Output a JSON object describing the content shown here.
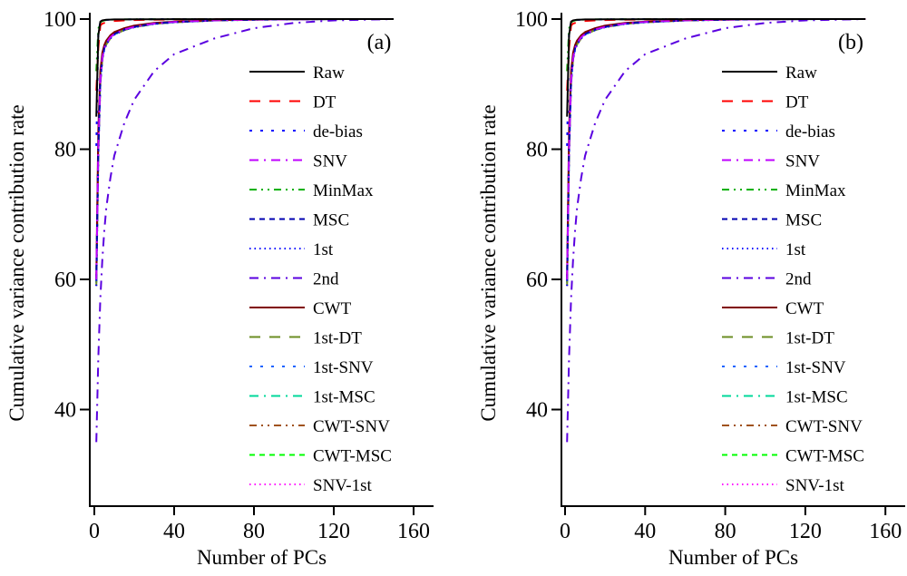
{
  "figure": {
    "series_styles": [
      {
        "name": "Raw",
        "color": "#000000",
        "dash": "solid"
      },
      {
        "name": "DT",
        "color": "#ff0000",
        "dash": "dash"
      },
      {
        "name": "de-bias",
        "color": "#0000ff",
        "dash": "dot-sparse"
      },
      {
        "name": "SNV",
        "color": "#bf00ff",
        "dash": "dash-dot"
      },
      {
        "name": "MinMax",
        "color": "#00b000",
        "dash": "dash-dot-dot"
      },
      {
        "name": "MSC",
        "color": "#0000b0",
        "dash": "short-dash"
      },
      {
        "name": "1st",
        "color": "#0000ff",
        "dash": "dot"
      },
      {
        "name": "2nd",
        "color": "#5a00e0",
        "dash": "dash-dot"
      },
      {
        "name": "CWT",
        "color": "#800000",
        "dash": "solid"
      },
      {
        "name": "1st-DT",
        "color": "#6b8e23",
        "dash": "dash"
      },
      {
        "name": "1st-SNV",
        "color": "#1e64ff",
        "dash": "dot-sparse"
      },
      {
        "name": "1st-MSC",
        "color": "#00d89a",
        "dash": "dash-dot"
      },
      {
        "name": "CWT-SNV",
        "color": "#a0521e",
        "dash": "dash-dot-dot"
      },
      {
        "name": "CWT-MSC",
        "color": "#00ff00",
        "dash": "short-dash"
      },
      {
        "name": "SNV-1st",
        "color": "#ff00ff",
        "dash": "dot"
      }
    ]
  },
  "chart_data": [
    {
      "type": "line",
      "panel_label": "(a)",
      "title": "",
      "xlabel": "Number of PCs",
      "ylabel": "Cumulative variance contribution rate",
      "xlim": [
        0,
        170
      ],
      "ylim": [
        25,
        103
      ],
      "xticks": [
        0,
        40,
        80,
        120,
        160
      ],
      "yticks": [
        40,
        60,
        80,
        100
      ],
      "grid": false,
      "legend_position": "right",
      "x": [
        1,
        2,
        3,
        4,
        5,
        6,
        8,
        10,
        15,
        20,
        30,
        40,
        60,
        80,
        100,
        120,
        150
      ],
      "series": [
        {
          "name": "Raw",
          "values": [
            85.0,
            97.5,
            99.6,
            99.8,
            99.85,
            99.9,
            99.92,
            99.94,
            99.95,
            99.96,
            99.97,
            99.98,
            99.99,
            100,
            100,
            100,
            100
          ]
        },
        {
          "name": "DT",
          "values": [
            89.0,
            95.5,
            99.0,
            99.3,
            99.4,
            99.5,
            99.6,
            99.7,
            99.8,
            99.85,
            99.9,
            99.94,
            99.97,
            99.99,
            100,
            100,
            100
          ]
        },
        {
          "name": "de-bias",
          "values": [
            80.5,
            98.0,
            99.5,
            99.7,
            99.8,
            99.85,
            99.9,
            99.92,
            99.94,
            99.96,
            99.97,
            99.98,
            99.99,
            100,
            100,
            100,
            100
          ]
        },
        {
          "name": "SNV",
          "values": [
            60.0,
            80.0,
            90.5,
            94.0,
            95.5,
            96.3,
            97.2,
            97.7,
            98.4,
            98.8,
            99.3,
            99.55,
            99.8,
            99.92,
            99.97,
            100,
            100
          ]
        },
        {
          "name": "MinMax",
          "values": [
            92.0,
            98.5,
            99.5,
            99.7,
            99.8,
            99.85,
            99.9,
            99.92,
            99.94,
            99.96,
            99.97,
            99.98,
            99.99,
            100,
            100,
            100,
            100
          ]
        },
        {
          "name": "MSC",
          "values": [
            60.0,
            80.0,
            90.5,
            94.0,
            95.5,
            96.3,
            97.2,
            97.7,
            98.4,
            98.8,
            99.3,
            99.55,
            99.8,
            99.92,
            99.97,
            100,
            100
          ]
        },
        {
          "name": "1st",
          "values": [
            59.0,
            79.0,
            90.0,
            93.8,
            95.3,
            96.1,
            97.0,
            97.6,
            98.3,
            98.75,
            99.25,
            99.5,
            99.78,
            99.9,
            99.96,
            99.99,
            100
          ]
        },
        {
          "name": "2nd",
          "values": [
            35.0,
            48.0,
            57.0,
            63.0,
            67.5,
            71.0,
            75.5,
            79.0,
            84.0,
            87.6,
            92.0,
            94.6,
            97.0,
            98.6,
            99.4,
            99.8,
            100
          ]
        },
        {
          "name": "CWT",
          "values": [
            60.5,
            83.0,
            92.0,
            94.8,
            96.0,
            96.7,
            97.5,
            98.0,
            98.6,
            99.0,
            99.4,
            99.6,
            99.82,
            99.92,
            99.97,
            100,
            100
          ]
        },
        {
          "name": "1st-DT",
          "values": [
            59.0,
            79.0,
            90.0,
            93.8,
            95.3,
            96.1,
            97.0,
            97.6,
            98.3,
            98.75,
            99.25,
            99.5,
            99.78,
            99.9,
            99.96,
            99.99,
            100
          ]
        },
        {
          "name": "1st-SNV",
          "values": [
            59.5,
            79.5,
            90.2,
            93.9,
            95.4,
            96.2,
            97.1,
            97.6,
            98.3,
            98.75,
            99.25,
            99.5,
            99.78,
            99.9,
            99.96,
            99.99,
            100
          ]
        },
        {
          "name": "1st-MSC",
          "values": [
            59.5,
            79.5,
            90.2,
            93.9,
            95.4,
            96.2,
            97.1,
            97.6,
            98.3,
            98.75,
            99.25,
            99.5,
            99.78,
            99.9,
            99.96,
            99.99,
            100
          ]
        },
        {
          "name": "CWT-SNV",
          "values": [
            60.0,
            81.0,
            91.0,
            94.3,
            95.7,
            96.4,
            97.3,
            97.8,
            98.5,
            98.9,
            99.35,
            99.58,
            99.8,
            99.92,
            99.97,
            100,
            100
          ]
        },
        {
          "name": "CWT-MSC",
          "values": [
            60.0,
            81.0,
            91.0,
            94.3,
            95.7,
            96.4,
            97.3,
            97.8,
            98.5,
            98.9,
            99.35,
            99.58,
            99.8,
            99.92,
            99.97,
            100,
            100
          ]
        },
        {
          "name": "SNV-1st",
          "values": [
            59.0,
            79.0,
            90.0,
            93.8,
            95.3,
            96.1,
            97.0,
            97.6,
            98.3,
            98.75,
            99.25,
            99.5,
            99.78,
            99.9,
            99.96,
            99.99,
            100
          ]
        }
      ]
    },
    {
      "type": "line",
      "panel_label": "(b)",
      "title": "",
      "xlabel": "Number of PCs",
      "ylabel": "Cumulative variance contribution rate",
      "xlim": [
        0,
        170
      ],
      "ylim": [
        25,
        103
      ],
      "xticks": [
        0,
        40,
        80,
        120,
        160
      ],
      "yticks": [
        40,
        60,
        80,
        100
      ],
      "grid": false,
      "legend_position": "right",
      "x": [
        1,
        2,
        3,
        4,
        5,
        6,
        8,
        10,
        15,
        20,
        30,
        40,
        60,
        80,
        100,
        120,
        150
      ],
      "series": [
        {
          "name": "Raw",
          "values": [
            85.0,
            97.5,
            99.6,
            99.8,
            99.85,
            99.9,
            99.92,
            99.94,
            99.95,
            99.96,
            99.97,
            99.98,
            99.99,
            100,
            100,
            100,
            100
          ]
        },
        {
          "name": "DT",
          "values": [
            89.0,
            95.5,
            99.0,
            99.3,
            99.4,
            99.5,
            99.6,
            99.7,
            99.8,
            99.85,
            99.9,
            99.94,
            99.97,
            99.99,
            100,
            100,
            100
          ]
        },
        {
          "name": "de-bias",
          "values": [
            80.5,
            98.0,
            99.5,
            99.7,
            99.8,
            99.85,
            99.9,
            99.92,
            99.94,
            99.96,
            99.97,
            99.98,
            99.99,
            100,
            100,
            100,
            100
          ]
        },
        {
          "name": "SNV",
          "values": [
            60.0,
            80.0,
            90.5,
            94.0,
            95.5,
            96.3,
            97.2,
            97.7,
            98.4,
            98.8,
            99.3,
            99.55,
            99.8,
            99.92,
            99.97,
            100,
            100
          ]
        },
        {
          "name": "MinMax",
          "values": [
            92.0,
            98.5,
            99.5,
            99.7,
            99.8,
            99.85,
            99.9,
            99.92,
            99.94,
            99.96,
            99.97,
            99.98,
            99.99,
            100,
            100,
            100,
            100
          ]
        },
        {
          "name": "MSC",
          "values": [
            60.0,
            80.0,
            90.5,
            94.0,
            95.5,
            96.3,
            97.2,
            97.7,
            98.4,
            98.8,
            99.3,
            99.55,
            99.8,
            99.92,
            99.97,
            100,
            100
          ]
        },
        {
          "name": "1st",
          "values": [
            59.0,
            79.0,
            90.0,
            93.8,
            95.3,
            96.1,
            97.0,
            97.6,
            98.3,
            98.75,
            99.25,
            99.5,
            99.78,
            99.9,
            99.96,
            99.99,
            100
          ]
        },
        {
          "name": "2nd",
          "values": [
            35.0,
            48.0,
            57.0,
            63.0,
            67.5,
            71.0,
            75.5,
            79.0,
            84.0,
            87.6,
            92.0,
            94.6,
            97.0,
            98.6,
            99.4,
            99.8,
            100
          ]
        },
        {
          "name": "CWT",
          "values": [
            60.5,
            83.0,
            92.0,
            94.8,
            96.0,
            96.7,
            97.5,
            98.0,
            98.6,
            99.0,
            99.4,
            99.6,
            99.82,
            99.92,
            99.97,
            100,
            100
          ]
        },
        {
          "name": "1st-DT",
          "values": [
            59.0,
            79.0,
            90.0,
            93.8,
            95.3,
            96.1,
            97.0,
            97.6,
            98.3,
            98.75,
            99.25,
            99.5,
            99.78,
            99.9,
            99.96,
            99.99,
            100
          ]
        },
        {
          "name": "1st-SNV",
          "values": [
            59.5,
            79.5,
            90.2,
            93.9,
            95.4,
            96.2,
            97.1,
            97.6,
            98.3,
            98.75,
            99.25,
            99.5,
            99.78,
            99.9,
            99.96,
            99.99,
            100
          ]
        },
        {
          "name": "1st-MSC",
          "values": [
            59.5,
            79.5,
            90.2,
            93.9,
            95.4,
            96.2,
            97.1,
            97.6,
            98.3,
            98.75,
            99.25,
            99.5,
            99.78,
            99.9,
            99.96,
            99.99,
            100
          ]
        },
        {
          "name": "CWT-SNV",
          "values": [
            60.0,
            81.0,
            91.0,
            94.3,
            95.7,
            96.4,
            97.3,
            97.8,
            98.5,
            98.9,
            99.35,
            99.58,
            99.8,
            99.92,
            99.97,
            100,
            100
          ]
        },
        {
          "name": "CWT-MSC",
          "values": [
            60.0,
            81.0,
            91.0,
            94.3,
            95.7,
            96.4,
            97.3,
            97.8,
            98.5,
            98.9,
            99.35,
            99.58,
            99.8,
            99.92,
            99.97,
            100,
            100
          ]
        },
        {
          "name": "SNV-1st",
          "values": [
            59.0,
            79.0,
            90.0,
            93.8,
            95.3,
            96.1,
            97.0,
            97.6,
            98.3,
            98.75,
            99.25,
            99.5,
            99.78,
            99.9,
            99.96,
            99.99,
            100
          ]
        }
      ]
    }
  ]
}
